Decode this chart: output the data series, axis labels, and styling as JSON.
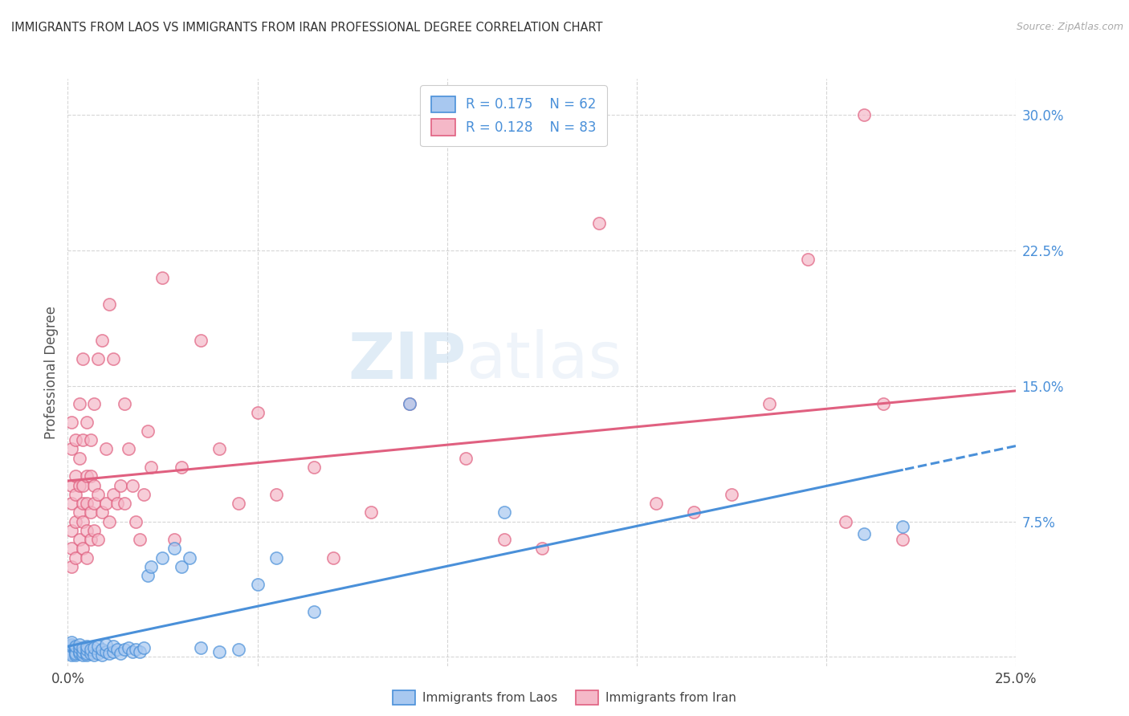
{
  "title": "IMMIGRANTS FROM LAOS VS IMMIGRANTS FROM IRAN PROFESSIONAL DEGREE CORRELATION CHART",
  "source": "Source: ZipAtlas.com",
  "ylabel": "Professional Degree",
  "xlim": [
    0.0,
    0.25
  ],
  "ylim": [
    -0.005,
    0.32
  ],
  "xticks": [
    0.0,
    0.05,
    0.1,
    0.15,
    0.2,
    0.25
  ],
  "xticklabels": [
    "0.0%",
    "",
    "",
    "",
    "",
    "25.0%"
  ],
  "yticks": [
    0.0,
    0.075,
    0.15,
    0.225,
    0.3
  ],
  "yticklabels": [
    "",
    "7.5%",
    "15.0%",
    "22.5%",
    "30.0%"
  ],
  "color_laos_fill": "#a8c8f0",
  "color_laos_edge": "#4a90d9",
  "color_iran_fill": "#f5b8c8",
  "color_iran_edge": "#e06080",
  "background_color": "#ffffff",
  "grid_color": "#cccccc",
  "watermark_zip": "ZIP",
  "watermark_atlas": "atlas",
  "laos_x": [
    0.001,
    0.001,
    0.001,
    0.001,
    0.001,
    0.001,
    0.001,
    0.001,
    0.002,
    0.002,
    0.002,
    0.002,
    0.002,
    0.002,
    0.003,
    0.003,
    0.003,
    0.003,
    0.004,
    0.004,
    0.004,
    0.005,
    0.005,
    0.005,
    0.005,
    0.006,
    0.006,
    0.007,
    0.007,
    0.008,
    0.008,
    0.009,
    0.009,
    0.01,
    0.01,
    0.011,
    0.012,
    0.012,
    0.013,
    0.014,
    0.015,
    0.016,
    0.017,
    0.018,
    0.019,
    0.02,
    0.021,
    0.022,
    0.025,
    0.028,
    0.03,
    0.032,
    0.035,
    0.04,
    0.045,
    0.05,
    0.055,
    0.065,
    0.09,
    0.115,
    0.21,
    0.22
  ],
  "laos_y": [
    0.005,
    0.004,
    0.003,
    0.002,
    0.001,
    0.006,
    0.007,
    0.008,
    0.003,
    0.004,
    0.005,
    0.001,
    0.002,
    0.006,
    0.002,
    0.003,
    0.005,
    0.007,
    0.001,
    0.003,
    0.005,
    0.001,
    0.002,
    0.004,
    0.006,
    0.002,
    0.004,
    0.001,
    0.005,
    0.002,
    0.006,
    0.001,
    0.004,
    0.003,
    0.007,
    0.002,
    0.003,
    0.006,
    0.004,
    0.002,
    0.004,
    0.005,
    0.003,
    0.004,
    0.003,
    0.005,
    0.045,
    0.05,
    0.055,
    0.06,
    0.05,
    0.055,
    0.005,
    0.003,
    0.004,
    0.04,
    0.055,
    0.025,
    0.14,
    0.08,
    0.068,
    0.072
  ],
  "iran_x": [
    0.001,
    0.001,
    0.001,
    0.001,
    0.001,
    0.001,
    0.001,
    0.002,
    0.002,
    0.002,
    0.002,
    0.002,
    0.003,
    0.003,
    0.003,
    0.003,
    0.003,
    0.004,
    0.004,
    0.004,
    0.004,
    0.004,
    0.004,
    0.005,
    0.005,
    0.005,
    0.005,
    0.005,
    0.006,
    0.006,
    0.006,
    0.006,
    0.007,
    0.007,
    0.007,
    0.007,
    0.008,
    0.008,
    0.008,
    0.009,
    0.009,
    0.01,
    0.01,
    0.011,
    0.011,
    0.012,
    0.012,
    0.013,
    0.014,
    0.015,
    0.015,
    0.016,
    0.017,
    0.018,
    0.019,
    0.02,
    0.021,
    0.022,
    0.025,
    0.028,
    0.03,
    0.035,
    0.04,
    0.045,
    0.05,
    0.055,
    0.065,
    0.07,
    0.08,
    0.09,
    0.105,
    0.115,
    0.125,
    0.14,
    0.155,
    0.165,
    0.175,
    0.185,
    0.195,
    0.205,
    0.21,
    0.215,
    0.22
  ],
  "iran_y": [
    0.05,
    0.085,
    0.07,
    0.095,
    0.115,
    0.13,
    0.06,
    0.075,
    0.09,
    0.1,
    0.12,
    0.055,
    0.065,
    0.08,
    0.095,
    0.11,
    0.14,
    0.06,
    0.075,
    0.085,
    0.095,
    0.12,
    0.165,
    0.055,
    0.07,
    0.085,
    0.1,
    0.13,
    0.065,
    0.08,
    0.1,
    0.12,
    0.07,
    0.085,
    0.095,
    0.14,
    0.065,
    0.09,
    0.165,
    0.08,
    0.175,
    0.085,
    0.115,
    0.075,
    0.195,
    0.09,
    0.165,
    0.085,
    0.095,
    0.085,
    0.14,
    0.115,
    0.095,
    0.075,
    0.065,
    0.09,
    0.125,
    0.105,
    0.21,
    0.065,
    0.105,
    0.175,
    0.115,
    0.085,
    0.135,
    0.09,
    0.105,
    0.055,
    0.08,
    0.14,
    0.11,
    0.065,
    0.06,
    0.24,
    0.085,
    0.08,
    0.09,
    0.14,
    0.22,
    0.075,
    0.3,
    0.14,
    0.065
  ]
}
